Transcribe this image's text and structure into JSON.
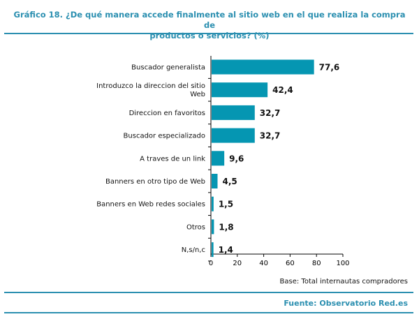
{
  "header": {
    "title_line1": "Gráfico 18. ¿De qué manera accede finalmente al sitio web en el que realiza la compra de",
    "title_line2": "productos o servicios? (%)"
  },
  "footer": {
    "base": "Base: Total internautas compradores",
    "source": "Fuente: Observatorio Red.es"
  },
  "colors": {
    "bar": "#0596b2",
    "accent": "#2b8fb0"
  },
  "chart_data": {
    "type": "bar",
    "orientation": "horizontal",
    "categories": [
      [
        "Buscador generalista"
      ],
      [
        "Introduzco la direccion del sitio",
        "Web"
      ],
      [
        "Direccion en favoritos"
      ],
      [
        "Buscador especializado"
      ],
      [
        "A traves de un link"
      ],
      [
        "Banners en otro tipo de Web"
      ],
      [
        "Banners en Web redes sociales"
      ],
      [
        "Otros"
      ],
      [
        "N,s/n,c"
      ]
    ],
    "values": [
      77.6,
      42.4,
      32.7,
      32.7,
      9.6,
      4.5,
      1.5,
      1.8,
      1.4
    ],
    "value_labels": [
      "77,6",
      "42,4",
      "32,7",
      "32,7",
      "9,6",
      "4,5",
      "1,5",
      "1,8",
      "1,4"
    ],
    "xlim": [
      0,
      100
    ],
    "xticks": [
      0,
      20,
      40,
      60,
      80,
      100
    ],
    "grid": false,
    "legend": "none"
  }
}
